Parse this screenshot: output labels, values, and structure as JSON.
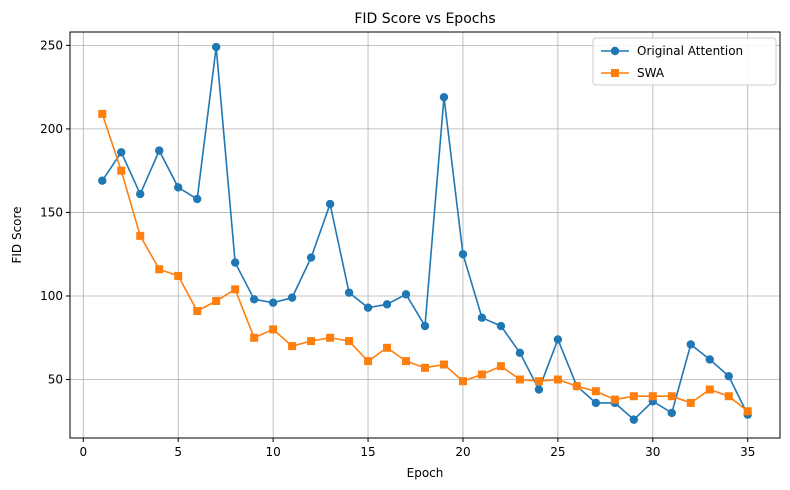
{
  "chart_data": {
    "type": "line",
    "title": "FID Score vs Epochs",
    "xlabel": "Epoch",
    "ylabel": "FID Score",
    "xlim": [
      -0.7,
      36.7
    ],
    "ylim": [
      15,
      258
    ],
    "xticks": [
      0,
      5,
      10,
      15,
      20,
      25,
      30,
      35
    ],
    "yticks": [
      50,
      100,
      150,
      200,
      250
    ],
    "grid": true,
    "legend_position": "top-right",
    "x": [
      1,
      2,
      3,
      4,
      5,
      6,
      7,
      8,
      9,
      10,
      11,
      12,
      13,
      14,
      15,
      16,
      17,
      18,
      19,
      20,
      21,
      22,
      23,
      24,
      25,
      26,
      27,
      28,
      29,
      30,
      31,
      32,
      33,
      34,
      35
    ],
    "series": [
      {
        "name": "Original Attention",
        "color": "#1f77b4",
        "marker": "circle",
        "values": [
          169,
          186,
          161,
          187,
          165,
          158,
          249,
          120,
          98,
          96,
          99,
          123,
          155,
          102,
          93,
          95,
          101,
          82,
          219,
          125,
          87,
          82,
          66,
          44,
          74,
          46,
          36,
          36,
          26,
          37,
          30,
          71,
          62,
          52,
          29
        ]
      },
      {
        "name": "SWA",
        "color": "#ff7f0e",
        "marker": "square",
        "values": [
          209,
          175,
          136,
          116,
          112,
          91,
          97,
          104,
          75,
          80,
          70,
          73,
          75,
          73,
          61,
          69,
          61,
          57,
          59,
          49,
          53,
          58,
          50,
          49,
          50,
          46,
          43,
          38,
          40,
          40,
          40,
          36,
          44,
          40,
          31
        ]
      }
    ]
  }
}
